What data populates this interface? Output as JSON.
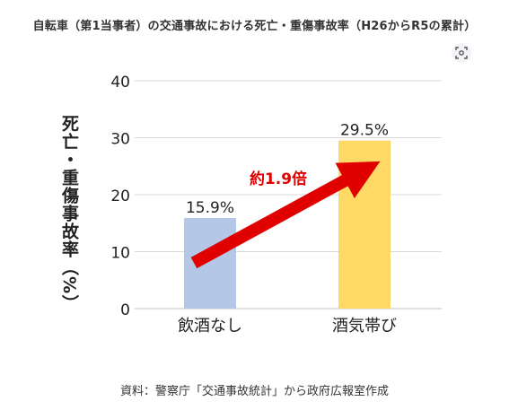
{
  "title": "自転車（第1当事者）の交通事故における死亡・重傷事故率（H26からR5の累計）",
  "source": "資料：警察庁「交通事故統計」から政府広報室作成",
  "lens_icon": "lens-search-icon",
  "colors": {
    "bar_no_alcohol": "#b4c7e7",
    "bar_drinking": "#ffd966",
    "arrow": "#e00000",
    "grid": "#d9d9d9"
  },
  "chart_data": {
    "type": "bar",
    "title": "自転車（第1当事者）の交通事故における死亡・重傷事故率（H26からR5の累計）",
    "xlabel": "",
    "ylabel": "死亡・重傷事故率（%）",
    "categories": [
      "飲酒なし",
      "酒気帯び"
    ],
    "values": [
      15.9,
      29.5
    ],
    "data_labels": [
      "15.9%",
      "29.5%"
    ],
    "ylim": [
      0,
      40
    ],
    "yticks": [
      0,
      10,
      20,
      30,
      40
    ],
    "grid": true,
    "annotation": "約1.9倍"
  }
}
